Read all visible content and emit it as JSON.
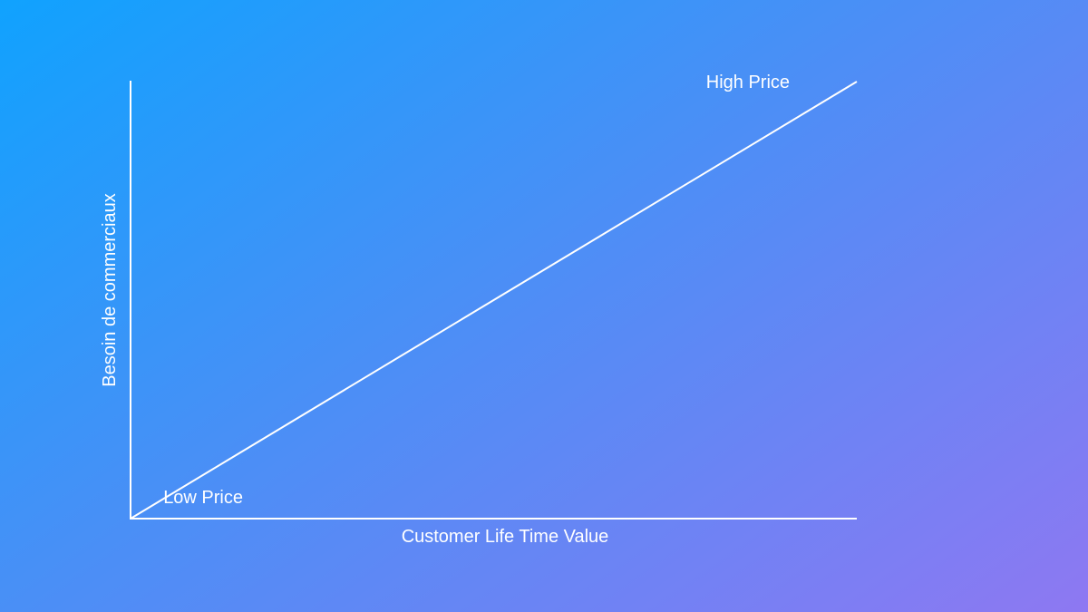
{
  "chart_data": {
    "type": "line",
    "title": "",
    "xlabel": "Customer Life Time Value",
    "ylabel": "Besoin de commerciaux",
    "x": [
      0,
      1
    ],
    "series": [
      {
        "values": [
          0,
          1
        ]
      }
    ],
    "xlim": [
      0,
      1
    ],
    "ylim": [
      0,
      1
    ],
    "grid": false,
    "annotations": [
      {
        "text": "Low Price",
        "x": 0.1,
        "y": 0.05
      },
      {
        "text": "High Price",
        "x": 0.85,
        "y": 1.0
      }
    ]
  },
  "colors": {
    "line": "#ffffff",
    "background_start": "#10a2fe",
    "background_end": "#8e78f2"
  }
}
